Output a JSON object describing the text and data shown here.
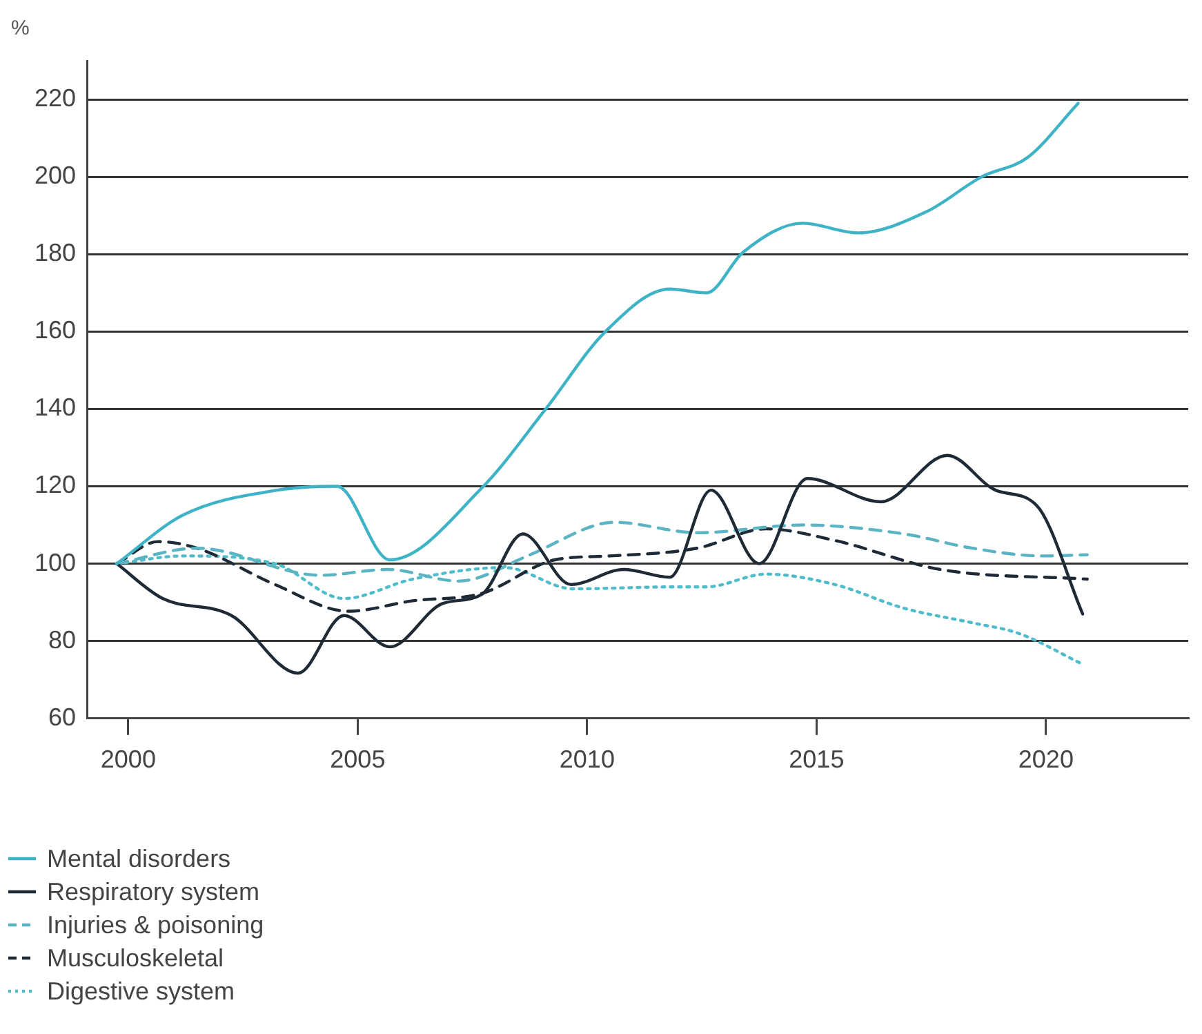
{
  "chart_data": {
    "type": "line",
    "ylabel": "%",
    "xlim": [
      1999.1,
      2023.1
    ],
    "xticks": [
      2000,
      2005,
      2010,
      2015,
      2020
    ],
    "ylim": [
      60,
      230
    ],
    "yticks": [
      60,
      80,
      100,
      120,
      140,
      160,
      180,
      200,
      220
    ],
    "grid": "y",
    "legend": "bottom left",
    "marker": "none",
    "series": [
      {
        "name": "Mental disorders",
        "color": "#3fb3c6",
        "line_style": "solid",
        "x": [
          1999.75,
          2001.2,
          2003.25,
          2004.55,
          2005.7,
          2007.7,
          2009.1,
          2010.4,
          2011.8,
          2012.6,
          2013.4,
          2014.7,
          2015.9,
          2017.4,
          2018.6,
          2019.6,
          2020.7
        ],
        "values": [
          100,
          112.6,
          119,
          120,
          101,
          119.5,
          140,
          160,
          171,
          170,
          180.5,
          188,
          185.5,
          191,
          200,
          205,
          219
        ]
      },
      {
        "name": "Respiratory system",
        "color": "#1e2a36",
        "line_style": "solid",
        "x": [
          1999.75,
          2000.75,
          2002.25,
          2003.7,
          2004.7,
          2005.7,
          2006.85,
          2007.7,
          2008.6,
          2009.65,
          2010.8,
          2011.8,
          2012.7,
          2013.75,
          2014.8,
          2016.4,
          2017.85,
          2018.9,
          2019.8,
          2020.8
        ],
        "values": [
          100,
          91,
          86.6,
          71.7,
          86.6,
          78.5,
          89.7,
          92,
          107.7,
          94.6,
          98.5,
          96.5,
          119,
          100,
          122,
          116,
          128,
          119,
          115,
          87
        ]
      },
      {
        "name": "Injuries & poisoning",
        "color": "#5ab4c4",
        "line_style": "dashed",
        "x": [
          1999.75,
          2001.5,
          2004.2,
          2005.65,
          2007.2,
          2008.7,
          2010.2,
          2010.6,
          2012.4,
          2014.7,
          2016.9,
          2018.4,
          2019.9,
          2020.9
        ],
        "values": [
          100,
          104,
          97,
          98.5,
          95.5,
          102,
          110,
          110.7,
          108,
          110,
          107.7,
          104,
          102,
          102.3
        ]
      },
      {
        "name": "Musculoskeletal",
        "color": "#1e2a36",
        "line_style": "dashed",
        "x": [
          1999.75,
          2000.65,
          2001.5,
          2003.2,
          2004.8,
          2006.2,
          2007.7,
          2009.3,
          2010.5,
          2012.4,
          2013.9,
          2015.4,
          2017.7,
          2020.9
        ],
        "values": [
          100,
          105.7,
          104,
          94.6,
          87.7,
          90.4,
          92.3,
          101,
          102,
          104,
          109,
          106,
          98.5,
          96
        ]
      },
      {
        "name": "Digestive system",
        "color": "#4fbccc",
        "line_style": "dotted",
        "x": [
          1999.75,
          2001.2,
          2003.2,
          2004.7,
          2006.2,
          2008.2,
          2009.7,
          2011.9,
          2012.6,
          2013.9,
          2015.4,
          2016.9,
          2018.4,
          2019.4,
          2020.8
        ],
        "values": [
          100,
          102,
          100,
          91,
          96,
          99,
          93.5,
          94,
          94,
          97.3,
          94.6,
          88.5,
          84.7,
          82,
          74
        ]
      }
    ]
  }
}
